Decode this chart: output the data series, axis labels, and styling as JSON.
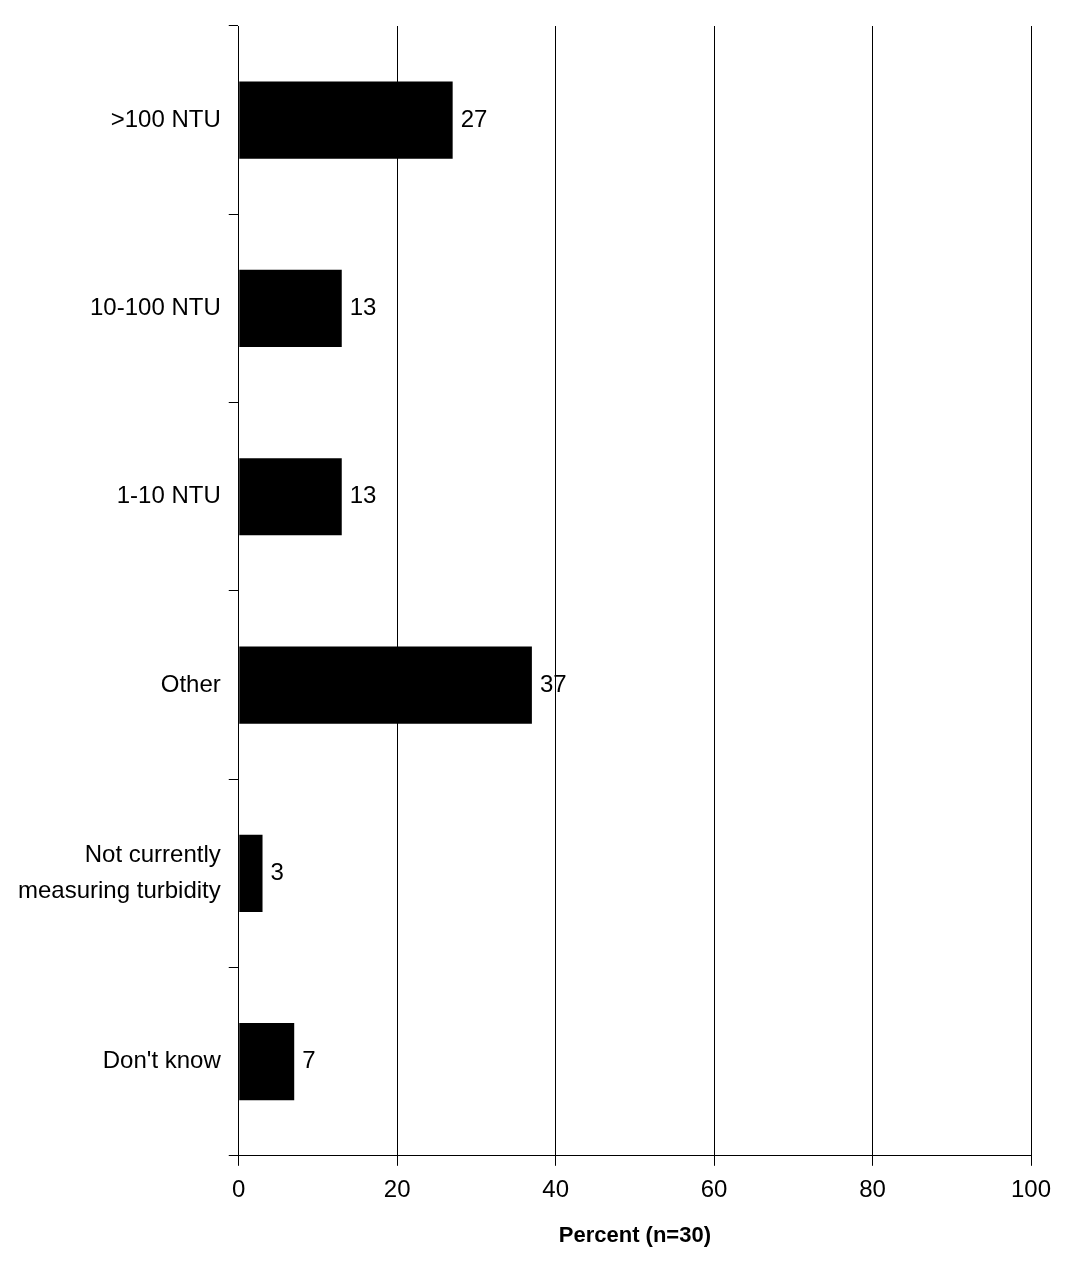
{
  "chart_data": {
    "type": "bar",
    "orientation": "horizontal",
    "xlabel": "Percent (n=30)",
    "categories": [
      ">100 NTU",
      "10-100 NTU",
      "1-10 NTU",
      "Other",
      "Not currently measuring turbidity",
      "Don't know"
    ],
    "values": [
      27,
      13,
      13,
      37,
      3,
      7
    ],
    "color": "#000000",
    "xlim": [
      0,
      100
    ],
    "xticks": [
      0,
      20,
      40,
      60,
      80,
      100
    ],
    "grid": "x",
    "data_labels": true,
    "legend": false
  }
}
